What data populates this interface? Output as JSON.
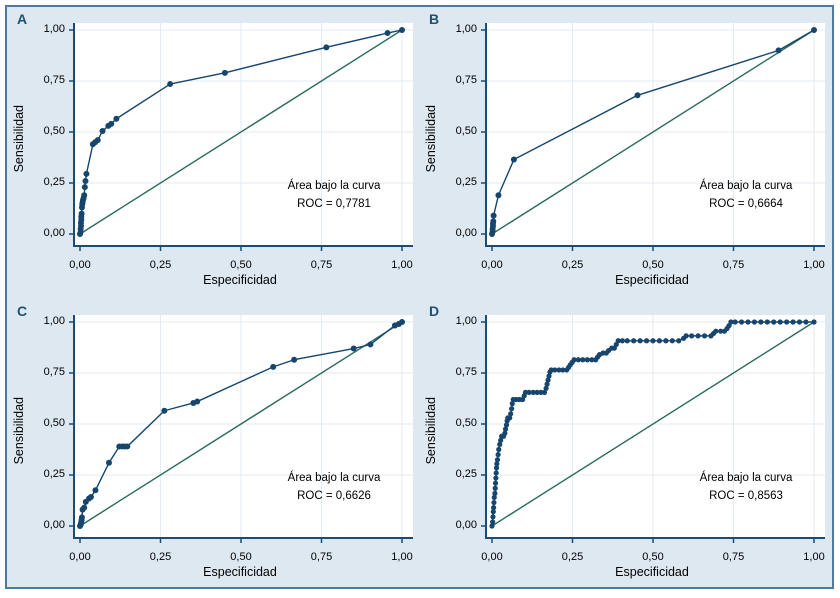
{
  "figure": {
    "canvas_background": "#dde8f0",
    "frame_border_color": "#4e79a0",
    "outer_background": "#ffffff"
  },
  "colors": {
    "roc_curve": "#16466e",
    "reference_diagonal": "#2a6b5c",
    "axis_line": "#1a4c74",
    "gridline": "#e3ebf2",
    "plot_background": "#ffffff",
    "panel_letter": "#1f5172",
    "text": "#000000"
  },
  "axes": {
    "x_label": "Especificidad",
    "y_label": "Sensibilidad",
    "tick_labels": [
      "0,00",
      "0,25",
      "0,50",
      "0,75",
      "1,00"
    ],
    "tick_values": [
      0,
      0.25,
      0.5,
      0.75,
      1
    ],
    "xlim": [
      0,
      1
    ],
    "ylim": [
      0,
      1
    ],
    "grid": true,
    "diagonal_reference": true
  },
  "chart_data": [
    {
      "type": "line",
      "panel": "A",
      "annotation_line1": "Área bajo la curva",
      "annotation_line2": "ROC = 0,7781",
      "auc": 0.7781,
      "roc_points": [
        [
          0,
          0
        ],
        [
          0.002,
          0.01
        ],
        [
          0.002,
          0.025
        ],
        [
          0.003,
          0.04
        ],
        [
          0.003,
          0.055
        ],
        [
          0.004,
          0.07
        ],
        [
          0.004,
          0.085
        ],
        [
          0.005,
          0.1
        ],
        [
          0.006,
          0.13
        ],
        [
          0.007,
          0.145
        ],
        [
          0.008,
          0.155
        ],
        [
          0.009,
          0.165
        ],
        [
          0.011,
          0.175
        ],
        [
          0.013,
          0.19
        ],
        [
          0.015,
          0.23
        ],
        [
          0.017,
          0.26
        ],
        [
          0.02,
          0.295
        ],
        [
          0.04,
          0.44
        ],
        [
          0.047,
          0.45
        ],
        [
          0.055,
          0.46
        ],
        [
          0.07,
          0.505
        ],
        [
          0.088,
          0.53
        ],
        [
          0.097,
          0.54
        ],
        [
          0.113,
          0.565
        ],
        [
          0.28,
          0.735
        ],
        [
          0.45,
          0.79
        ],
        [
          0.765,
          0.915
        ],
        [
          0.955,
          0.985
        ],
        [
          1,
          1
        ]
      ]
    },
    {
      "type": "line",
      "panel": "B",
      "annotation_line1": "Área bajo la curva",
      "annotation_line2": "ROC = 0,6664",
      "auc": 0.6664,
      "roc_points": [
        [
          0,
          0
        ],
        [
          0.002,
          0.012
        ],
        [
          0.002,
          0.025
        ],
        [
          0.003,
          0.038
        ],
        [
          0.003,
          0.05
        ],
        [
          0.004,
          0.062
        ],
        [
          0.005,
          0.09
        ],
        [
          0.02,
          0.19
        ],
        [
          0.068,
          0.365
        ],
        [
          0.452,
          0.68
        ],
        [
          0.89,
          0.9
        ],
        [
          1,
          1
        ]
      ]
    },
    {
      "type": "line",
      "panel": "C",
      "annotation_line1": "Área bajo la curva",
      "annotation_line2": "ROC = 0,6626",
      "auc": 0.6626,
      "roc_points": [
        [
          0,
          0
        ],
        [
          0.002,
          0.006
        ],
        [
          0.003,
          0.012
        ],
        [
          0.004,
          0.02
        ],
        [
          0.005,
          0.03
        ],
        [
          0.006,
          0.042
        ],
        [
          0.008,
          0.08
        ],
        [
          0.013,
          0.09
        ],
        [
          0.018,
          0.118
        ],
        [
          0.028,
          0.135
        ],
        [
          0.034,
          0.142
        ],
        [
          0.048,
          0.175
        ],
        [
          0.09,
          0.31
        ],
        [
          0.122,
          0.39
        ],
        [
          0.131,
          0.39
        ],
        [
          0.139,
          0.39
        ],
        [
          0.147,
          0.39
        ],
        [
          0.262,
          0.565
        ],
        [
          0.352,
          0.603
        ],
        [
          0.364,
          0.61
        ],
        [
          0.6,
          0.78
        ],
        [
          0.665,
          0.815
        ],
        [
          0.85,
          0.87
        ],
        [
          0.902,
          0.89
        ],
        [
          0.978,
          0.983
        ],
        [
          0.99,
          0.99
        ],
        [
          1,
          1
        ]
      ]
    },
    {
      "type": "line",
      "panel": "D",
      "annotation_line1": "Área bajo la curva",
      "annotation_line2": "ROC = 0,8563",
      "auc": 0.8563,
      "roc_points": [
        [
          0,
          0
        ],
        [
          0.002,
          0.02
        ],
        [
          0.003,
          0.045
        ],
        [
          0.004,
          0.07
        ],
        [
          0.005,
          0.09
        ],
        [
          0.006,
          0.115
        ],
        [
          0.007,
          0.14
        ],
        [
          0.009,
          0.16
        ],
        [
          0.01,
          0.185
        ],
        [
          0.011,
          0.21
        ],
        [
          0.012,
          0.235
        ],
        [
          0.013,
          0.26
        ],
        [
          0.014,
          0.285
        ],
        [
          0.015,
          0.305
        ],
        [
          0.017,
          0.325
        ],
        [
          0.019,
          0.35
        ],
        [
          0.021,
          0.375
        ],
        [
          0.024,
          0.4
        ],
        [
          0.027,
          0.42
        ],
        [
          0.03,
          0.44
        ],
        [
          0.036,
          0.44
        ],
        [
          0.04,
          0.455
        ],
        [
          0.042,
          0.475
        ],
        [
          0.045,
          0.495
        ],
        [
          0.047,
          0.515
        ],
        [
          0.049,
          0.53
        ],
        [
          0.055,
          0.53
        ],
        [
          0.058,
          0.55
        ],
        [
          0.061,
          0.575
        ],
        [
          0.063,
          0.6
        ],
        [
          0.066,
          0.62
        ],
        [
          0.075,
          0.62
        ],
        [
          0.085,
          0.62
        ],
        [
          0.095,
          0.62
        ],
        [
          0.1,
          0.638
        ],
        [
          0.104,
          0.655
        ],
        [
          0.115,
          0.655
        ],
        [
          0.128,
          0.655
        ],
        [
          0.14,
          0.655
        ],
        [
          0.152,
          0.655
        ],
        [
          0.163,
          0.655
        ],
        [
          0.168,
          0.675
        ],
        [
          0.171,
          0.695
        ],
        [
          0.174,
          0.715
        ],
        [
          0.177,
          0.735
        ],
        [
          0.18,
          0.755
        ],
        [
          0.184,
          0.765
        ],
        [
          0.195,
          0.765
        ],
        [
          0.208,
          0.765
        ],
        [
          0.22,
          0.765
        ],
        [
          0.232,
          0.765
        ],
        [
          0.238,
          0.778
        ],
        [
          0.243,
          0.79
        ],
        [
          0.249,
          0.802
        ],
        [
          0.255,
          0.815
        ],
        [
          0.268,
          0.815
        ],
        [
          0.282,
          0.815
        ],
        [
          0.296,
          0.815
        ],
        [
          0.31,
          0.815
        ],
        [
          0.322,
          0.815
        ],
        [
          0.328,
          0.828
        ],
        [
          0.334,
          0.84
        ],
        [
          0.345,
          0.848
        ],
        [
          0.355,
          0.848
        ],
        [
          0.362,
          0.86
        ],
        [
          0.372,
          0.872
        ],
        [
          0.38,
          0.872
        ],
        [
          0.386,
          0.89
        ],
        [
          0.392,
          0.908
        ],
        [
          0.405,
          0.908
        ],
        [
          0.42,
          0.908
        ],
        [
          0.44,
          0.908
        ],
        [
          0.46,
          0.908
        ],
        [
          0.48,
          0.908
        ],
        [
          0.5,
          0.908
        ],
        [
          0.52,
          0.908
        ],
        [
          0.54,
          0.908
        ],
        [
          0.56,
          0.908
        ],
        [
          0.58,
          0.908
        ],
        [
          0.595,
          0.92
        ],
        [
          0.603,
          0.932
        ],
        [
          0.62,
          0.932
        ],
        [
          0.64,
          0.932
        ],
        [
          0.66,
          0.932
        ],
        [
          0.68,
          0.932
        ],
        [
          0.688,
          0.944
        ],
        [
          0.695,
          0.955
        ],
        [
          0.71,
          0.955
        ],
        [
          0.722,
          0.955
        ],
        [
          0.73,
          0.968
        ],
        [
          0.736,
          0.982
        ],
        [
          0.742,
          1
        ],
        [
          0.755,
          1
        ],
        [
          0.775,
          1
        ],
        [
          0.795,
          1
        ],
        [
          0.815,
          1
        ],
        [
          0.835,
          1
        ],
        [
          0.855,
          1
        ],
        [
          0.875,
          1
        ],
        [
          0.895,
          1
        ],
        [
          0.915,
          1
        ],
        [
          0.935,
          1
        ],
        [
          0.955,
          1
        ],
        [
          0.975,
          1
        ],
        [
          1,
          1
        ]
      ]
    }
  ]
}
